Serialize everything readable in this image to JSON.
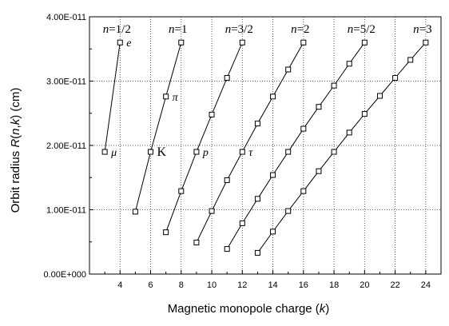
{
  "chart_data": {
    "type": "line",
    "xlabel": "Magnetic monopole charge (k)",
    "xlabel_parts": [
      "Magnetic monopole charge (",
      "k",
      ")"
    ],
    "ylabel": "Orbit radius R(n,k) (cm)",
    "ylabel_parts": [
      "Orbit radius ",
      "R",
      "(",
      "n",
      ",",
      "k",
      ") (cm)"
    ],
    "xlim": [
      2,
      25
    ],
    "ylim": [
      0,
      4e-11
    ],
    "x_ticks": [
      4,
      6,
      8,
      10,
      12,
      14,
      16,
      18,
      20,
      22,
      24
    ],
    "x_tick_labels": [
      "4",
      "6",
      "8",
      "10",
      "12",
      "14",
      "16",
      "18",
      "20",
      "22",
      "24"
    ],
    "y_ticks": [
      0,
      1e-11,
      2e-11,
      3e-11,
      4e-11
    ],
    "y_tick_labels": [
      "0.00E+000",
      "1.00E-011",
      "2.00E-011",
      "3.00E-011",
      "4.00E-011"
    ],
    "series": [
      {
        "name": "n=1/2",
        "n_value": "1/2",
        "points": [
          [
            3,
            1.9e-11
          ],
          [
            4,
            3.6e-11
          ]
        ]
      },
      {
        "name": "n=1",
        "n_value": "1",
        "points": [
          [
            5,
            9.7e-12
          ],
          [
            6,
            1.9e-11
          ],
          [
            7,
            2.76e-11
          ],
          [
            8,
            3.6e-11
          ]
        ]
      },
      {
        "name": "n=3/2",
        "n_value": "3/2",
        "points": [
          [
            7,
            6.5e-12
          ],
          [
            8,
            1.29e-11
          ],
          [
            9,
            1.9e-11
          ],
          [
            10,
            2.48e-11
          ],
          [
            11,
            3.05e-11
          ],
          [
            12,
            3.6e-11
          ]
        ]
      },
      {
        "name": "n=2",
        "n_value": "2",
        "points": [
          [
            9,
            4.9e-12
          ],
          [
            10,
            9.8e-12
          ],
          [
            11,
            1.46e-11
          ],
          [
            12,
            1.9e-11
          ],
          [
            13,
            2.34e-11
          ],
          [
            14,
            2.76e-11
          ],
          [
            15,
            3.18e-11
          ],
          [
            16,
            3.6e-11
          ]
        ]
      },
      {
        "name": "n=5/2",
        "n_value": "5/2",
        "points": [
          [
            11,
            3.9e-12
          ],
          [
            12,
            7.9e-12
          ],
          [
            13,
            1.17e-11
          ],
          [
            14,
            1.54e-11
          ],
          [
            15,
            1.9e-11
          ],
          [
            16,
            2.26e-11
          ],
          [
            17,
            2.6e-11
          ],
          [
            18,
            2.93e-11
          ],
          [
            19,
            3.27e-11
          ],
          [
            20,
            3.6e-11
          ]
        ]
      },
      {
        "name": "n=3",
        "n_value": "3",
        "points": [
          [
            13,
            3.3e-12
          ],
          [
            14,
            6.6e-12
          ],
          [
            15,
            9.8e-12
          ],
          [
            16,
            1.29e-11
          ],
          [
            17,
            1.6e-11
          ],
          [
            18,
            1.9e-11
          ],
          [
            19,
            2.2e-11
          ],
          [
            20,
            2.49e-11
          ],
          [
            21,
            2.77e-11
          ],
          [
            22,
            3.05e-11
          ],
          [
            23,
            3.33e-11
          ],
          [
            24,
            3.6e-11
          ]
        ]
      }
    ],
    "annotations": [
      {
        "text": "e",
        "x": 4,
        "y": 3.6e-11
      },
      {
        "text": "π",
        "x": 7,
        "y": 2.76e-11
      },
      {
        "text": "μ",
        "x": 3,
        "y": 1.9e-11
      },
      {
        "text": "K",
        "x": 6,
        "y": 1.9e-11
      },
      {
        "text": "p",
        "x": 9,
        "y": 1.9e-11
      },
      {
        "text": "τ",
        "x": 12,
        "y": 1.9e-11
      }
    ],
    "grid": "dotted",
    "legend": "none"
  }
}
